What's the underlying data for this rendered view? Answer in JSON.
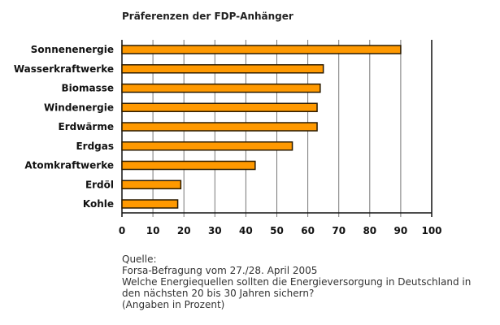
{
  "chart_data": {
    "type": "bar",
    "orientation": "horizontal",
    "title": "Präferenzen der FDP-Anhänger",
    "categories": [
      "Sonnenenergie",
      "Wasserkraftwerke",
      "Biomasse",
      "Windenergie",
      "Erdwärme",
      "Erdgas",
      "Atomkraftwerke",
      "Erdöl",
      "Kohle"
    ],
    "values": [
      90,
      65,
      64,
      63,
      63,
      55,
      43,
      19,
      18
    ],
    "xlim": [
      0,
      100
    ],
    "xticks": [
      "0",
      "10",
      "20",
      "30",
      "40",
      "50",
      "60",
      "70",
      "80",
      "90",
      "100"
    ],
    "xlabel": "",
    "ylabel": "",
    "grid": true,
    "bar_color": "#FF9900",
    "edge_color": "#2a1a00"
  },
  "source": {
    "lines": [
      "Quelle:",
      "Forsa-Befragung vom 27./28. April 2005",
      "Welche Energiequellen sollten die Energieversorgung in Deutschland in",
      "den nächsten 20 bis 30 Jahren sichern?",
      "(Angaben in Prozent)"
    ]
  }
}
